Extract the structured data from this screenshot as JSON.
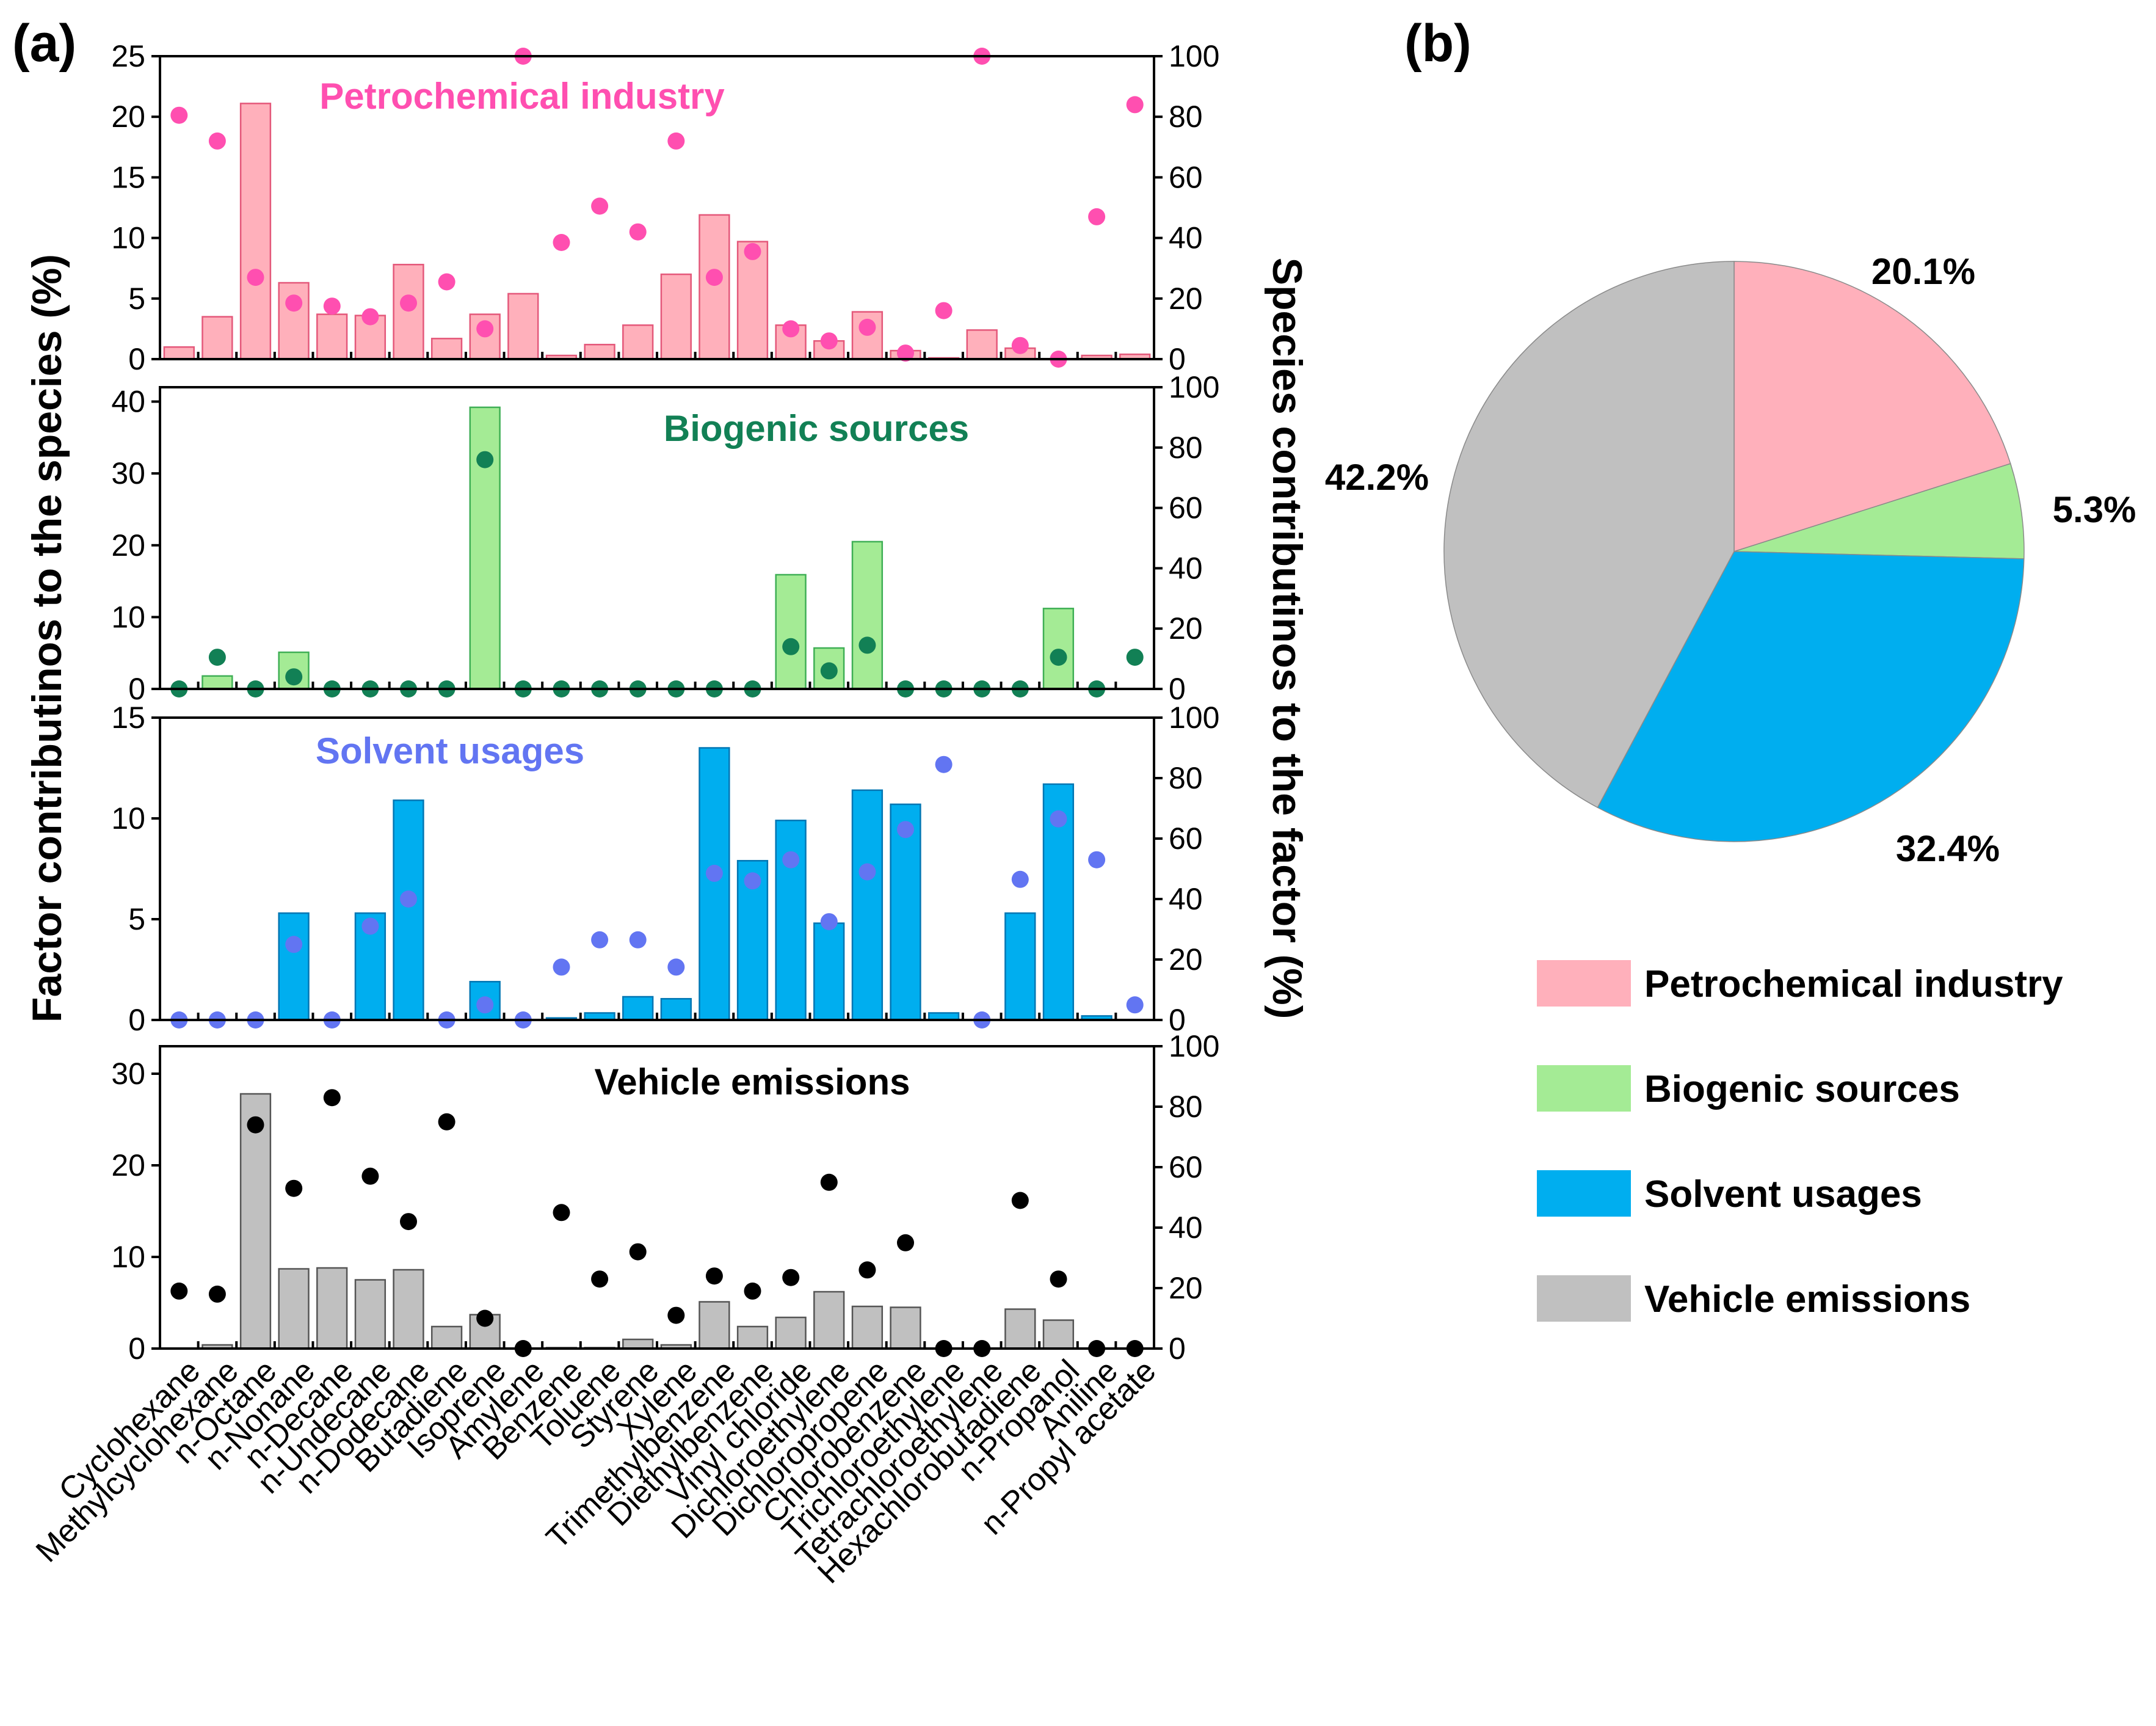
{
  "panel_labels": {
    "a": "(a)",
    "b": "(b)"
  },
  "chart_data": [
    {
      "type": "bar",
      "id": "panel-a",
      "title": "",
      "ylabel": "Factor contributinos to the species (%)",
      "y2label": "Species contributinos to the factor (%)",
      "categories": [
        "Cyclohexane",
        "Methylcyclohexane",
        "n-Octane",
        "n-Nonane",
        "n-Decane",
        "n-Undecane",
        "n-Dodecane",
        "Butadiene",
        "Isoprene",
        "Amylene",
        "Benzene",
        "Toluene",
        "Styrene",
        "Xylene",
        "Trimethylbenzene",
        "Diethylbenzene",
        "Vinyl chloride",
        "Dichloroethylene",
        "Dichloropropene",
        "Chlorobenzene",
        "Trichloroethylene",
        "Tetrachloroethylene",
        "Hexachlorobutadiene",
        "n-Propanol",
        "Aniline",
        "n-Propyl acetate"
      ],
      "bar_series_axis": "left (%)",
      "point_series_axis": "right (%)",
      "series": [
        {
          "name": "Petrochemical industry",
          "bar_color": "#FFB0BB",
          "bar_edge": "#E4587A",
          "point_color": "#FF4FB0",
          "ylim": [
            0,
            25
          ],
          "yticks": [
            0,
            5,
            10,
            15,
            20,
            25
          ],
          "y2lim": [
            0,
            100
          ],
          "y2ticks": [
            0,
            20,
            40,
            60,
            80,
            100
          ],
          "bars": [
            1.0,
            3.5,
            21.1,
            6.3,
            3.7,
            3.6,
            7.8,
            1.7,
            3.7,
            5.4,
            0.3,
            1.2,
            2.8,
            7.0,
            11.9,
            9.7,
            2.8,
            1.5,
            3.9,
            0.7,
            0.1,
            2.4,
            0.9,
            0.0,
            0.3,
            0.4
          ],
          "points": [
            80.5,
            72,
            27,
            18.5,
            17.5,
            14,
            18.5,
            25.5,
            10,
            100,
            38.5,
            50.5,
            42,
            72,
            27,
            35.5,
            10,
            6,
            10.5,
            2,
            16,
            100,
            4.5,
            0,
            47,
            84
          ]
        },
        {
          "name": "Biogenic sources",
          "bar_color": "#A4EB95",
          "bar_edge": "#3FAF55",
          "point_color": "#128055",
          "ylim": [
            0,
            42
          ],
          "yticks": [
            0,
            10,
            20,
            30,
            40
          ],
          "y2lim": [
            0,
            100
          ],
          "y2ticks": [
            0,
            20,
            40,
            60,
            80,
            100
          ],
          "bars": [
            0,
            1.8,
            0,
            5.1,
            0,
            0,
            0,
            0,
            39.2,
            0,
            0,
            0,
            0,
            0,
            0,
            0,
            15.9,
            5.7,
            20.5,
            0,
            0,
            0,
            0,
            11.2,
            0,
            0
          ],
          "points": [
            0,
            10.5,
            0,
            4,
            0,
            0,
            0,
            0,
            76,
            0,
            0,
            0,
            0,
            0,
            0,
            0,
            14,
            6,
            14.5,
            0,
            0,
            0,
            0,
            10.5,
            0,
            10.5
          ]
        },
        {
          "name": "Solvent usages",
          "bar_color": "#00AEEF",
          "bar_edge": "#0076B3",
          "point_color": "#6275F2",
          "ylim": [
            0,
            15
          ],
          "yticks": [
            0,
            5,
            10,
            15
          ],
          "y2lim": [
            0,
            100
          ],
          "y2ticks": [
            0,
            20,
            40,
            60,
            80,
            100
          ],
          "bars": [
            0,
            0,
            0,
            5.3,
            0,
            5.3,
            10.9,
            0,
            1.9,
            0,
            0.1,
            0.35,
            1.15,
            1.05,
            13.5,
            7.9,
            9.9,
            4.8,
            11.4,
            10.7,
            0.35,
            0,
            5.3,
            11.7,
            0.2,
            0
          ],
          "points": [
            0,
            0,
            0,
            25,
            0,
            31,
            40,
            0,
            5,
            0,
            17.5,
            26.5,
            26.5,
            17.5,
            48.5,
            46,
            53,
            32.5,
            49,
            63,
            84.5,
            0,
            46.5,
            66.5,
            53,
            5
          ]
        },
        {
          "name": "Vehicle emissions",
          "bar_color": "#C0C0C0",
          "bar_edge": "#555555",
          "point_color": "#000000",
          "ylim": [
            0,
            33
          ],
          "yticks": [
            0,
            10,
            20,
            30
          ],
          "y2lim": [
            0,
            100
          ],
          "y2ticks": [
            0,
            20,
            40,
            60,
            80,
            100
          ],
          "bars": [
            0,
            0.4,
            27.8,
            8.7,
            8.8,
            7.5,
            8.6,
            2.4,
            3.7,
            0,
            0.1,
            0.1,
            1.0,
            0.4,
            5.1,
            2.4,
            3.4,
            6.2,
            4.6,
            4.5,
            0,
            0,
            4.3,
            3.1,
            0,
            0
          ],
          "points": [
            19,
            18,
            74,
            53,
            83,
            57,
            42,
            75,
            10,
            0,
            45,
            23,
            32,
            11,
            24,
            19,
            23.5,
            55,
            26,
            35,
            0,
            0,
            49,
            23,
            0,
            0
          ]
        }
      ]
    },
    {
      "type": "pie",
      "id": "panel-b",
      "title": "",
      "labels": [
        "Petrochemical industry",
        "Biogenic sources",
        "Solvent usages",
        "Vehicle emissions"
      ],
      "values": [
        20.1,
        5.3,
        32.4,
        42.2
      ],
      "value_labels": [
        "20.1%",
        "5.3%",
        "32.4%",
        "42.2%"
      ],
      "colors": [
        "#FFB0BB",
        "#A4EB95",
        "#00AEEF",
        "#C0C0C0"
      ],
      "legend_position": "below"
    }
  ]
}
